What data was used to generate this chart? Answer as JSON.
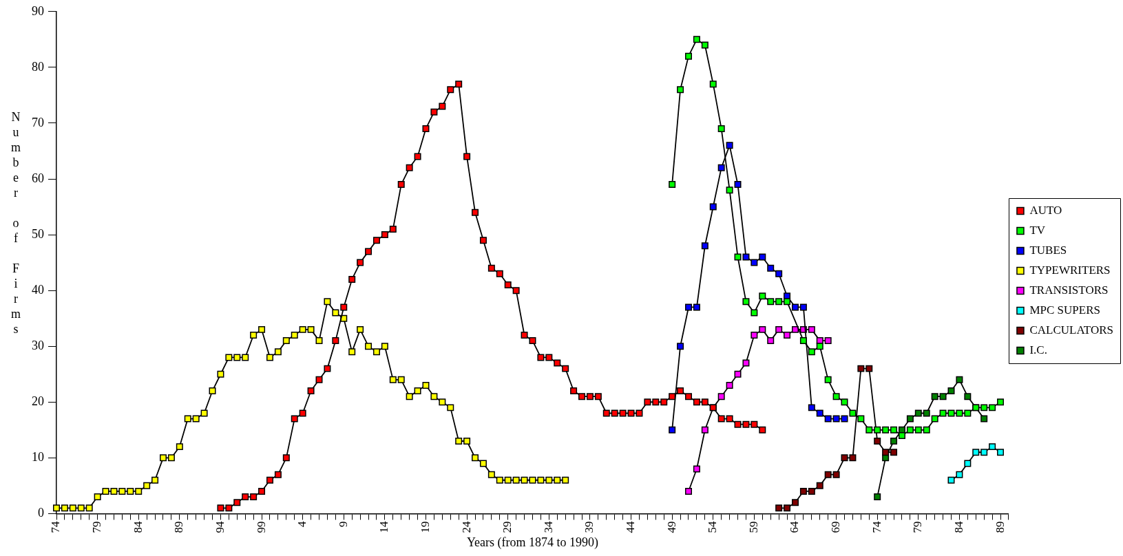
{
  "chart_data": {
    "type": "line",
    "xlabel": "Years (from 1874 to 1990)",
    "ylabel": "Number of Firms",
    "legend": "right",
    "marker": "square",
    "line_style": "solid",
    "ylim": [
      0,
      90
    ],
    "yticks": [
      0,
      10,
      20,
      30,
      40,
      50,
      60,
      70,
      80,
      90
    ],
    "categories": [
      "74",
      null,
      null,
      null,
      null,
      "79",
      null,
      null,
      null,
      null,
      "84",
      null,
      null,
      null,
      null,
      "89",
      null,
      null,
      null,
      null,
      "94",
      null,
      null,
      null,
      null,
      "99",
      null,
      null,
      null,
      null,
      "4",
      null,
      null,
      null,
      null,
      "9",
      null,
      null,
      null,
      null,
      "14",
      null,
      null,
      null,
      null,
      "19",
      null,
      null,
      null,
      null,
      "24",
      null,
      null,
      null,
      null,
      "29",
      null,
      null,
      null,
      null,
      "34",
      null,
      null,
      null,
      null,
      "39",
      null,
      null,
      null,
      null,
      "44",
      null,
      null,
      null,
      null,
      "49",
      null,
      null,
      null,
      null,
      "54",
      null,
      null,
      null,
      null,
      "59",
      null,
      null,
      null,
      null,
      "64",
      null,
      null,
      null,
      null,
      "69",
      null,
      null,
      null,
      null,
      "74",
      null,
      null,
      null,
      null,
      "79",
      null,
      null,
      null,
      null,
      "84",
      null,
      null,
      null,
      null,
      "89",
      null
    ],
    "series": [
      {
        "name": "AUTO",
        "color": "#ff0000",
        "values": [
          null,
          null,
          null,
          null,
          null,
          null,
          null,
          null,
          null,
          null,
          null,
          null,
          null,
          null,
          null,
          null,
          null,
          null,
          null,
          null,
          1,
          1,
          2,
          3,
          3,
          4,
          6,
          7,
          10,
          17,
          18,
          22,
          24,
          26,
          31,
          37,
          42,
          45,
          47,
          49,
          50,
          51,
          59,
          62,
          64,
          69,
          72,
          73,
          76,
          77,
          64,
          54,
          49,
          44,
          43,
          41,
          40,
          32,
          31,
          28,
          28,
          27,
          26,
          22,
          21,
          21,
          21,
          18,
          18,
          18,
          18,
          18,
          20,
          20,
          20,
          21,
          22,
          21,
          20,
          20,
          19,
          17,
          17,
          16,
          16,
          16,
          15,
          null,
          null,
          null,
          null,
          null,
          null,
          null,
          null,
          null,
          null,
          null,
          null,
          null,
          null,
          null,
          null,
          null,
          null,
          null,
          null,
          null,
          null,
          null,
          null,
          null,
          null,
          null,
          null,
          null,
          null
        ]
      },
      {
        "name": "TV",
        "color": "#00ff00",
        "values": [
          null,
          null,
          null,
          null,
          null,
          null,
          null,
          null,
          null,
          null,
          null,
          null,
          null,
          null,
          null,
          null,
          null,
          null,
          null,
          null,
          null,
          null,
          null,
          null,
          null,
          null,
          null,
          null,
          null,
          null,
          null,
          null,
          null,
          null,
          null,
          null,
          null,
          null,
          null,
          null,
          null,
          null,
          null,
          null,
          null,
          null,
          null,
          null,
          null,
          null,
          null,
          null,
          null,
          null,
          null,
          null,
          null,
          null,
          null,
          null,
          null,
          null,
          null,
          null,
          null,
          null,
          null,
          null,
          null,
          null,
          null,
          null,
          null,
          null,
          null,
          59,
          76,
          82,
          85,
          84,
          77,
          69,
          58,
          46,
          38,
          36,
          39,
          38,
          38,
          38,
          null,
          31,
          29,
          30,
          24,
          21,
          20,
          18,
          17,
          15,
          15,
          15,
          15,
          14,
          15,
          15,
          15,
          17,
          18,
          18,
          18,
          18,
          19,
          19,
          19,
          20,
          null
        ]
      },
      {
        "name": "TUBES",
        "color": "#0000ff",
        "values": [
          null,
          null,
          null,
          null,
          null,
          null,
          null,
          null,
          null,
          null,
          null,
          null,
          null,
          null,
          null,
          null,
          null,
          null,
          null,
          null,
          null,
          null,
          null,
          null,
          null,
          null,
          null,
          null,
          null,
          null,
          null,
          null,
          null,
          null,
          null,
          null,
          null,
          null,
          null,
          null,
          null,
          null,
          null,
          null,
          null,
          null,
          null,
          null,
          null,
          null,
          null,
          null,
          null,
          null,
          null,
          null,
          null,
          null,
          null,
          null,
          null,
          null,
          null,
          null,
          null,
          null,
          null,
          null,
          null,
          null,
          null,
          null,
          null,
          null,
          null,
          15,
          30,
          37,
          37,
          48,
          55,
          62,
          66,
          59,
          46,
          45,
          46,
          44,
          43,
          39,
          37,
          37,
          19,
          18,
          17,
          17,
          17,
          null,
          null,
          null,
          null,
          null,
          null,
          null,
          null,
          null,
          null,
          null,
          null,
          null,
          null,
          null,
          null,
          null,
          null,
          null,
          null
        ]
      },
      {
        "name": "TYPEWRITERS",
        "color": "#ffff00",
        "values": [
          1,
          1,
          1,
          1,
          1,
          3,
          4,
          4,
          4,
          4,
          4,
          5,
          6,
          10,
          10,
          12,
          17,
          17,
          18,
          22,
          25,
          28,
          28,
          28,
          32,
          33,
          28,
          29,
          31,
          32,
          33,
          33,
          31,
          38,
          36,
          35,
          29,
          33,
          30,
          29,
          30,
          24,
          24,
          21,
          22,
          23,
          21,
          20,
          19,
          13,
          13,
          10,
          9,
          7,
          6,
          6,
          6,
          6,
          6,
          6,
          6,
          6,
          6,
          null,
          null,
          null,
          null,
          null,
          null,
          null,
          null,
          null,
          null,
          null,
          null,
          null,
          null,
          null,
          null,
          null,
          null,
          null,
          null,
          null,
          null,
          null,
          null,
          null,
          null,
          null,
          null,
          null,
          null,
          null,
          null,
          null,
          null,
          null,
          null,
          null,
          null,
          null,
          null,
          null,
          null,
          null,
          null,
          null,
          null,
          null,
          null,
          null,
          null,
          null,
          null,
          null,
          null
        ]
      },
      {
        "name": "TRANSISTORS",
        "color": "#ff00ff",
        "values": [
          null,
          null,
          null,
          null,
          null,
          null,
          null,
          null,
          null,
          null,
          null,
          null,
          null,
          null,
          null,
          null,
          null,
          null,
          null,
          null,
          null,
          null,
          null,
          null,
          null,
          null,
          null,
          null,
          null,
          null,
          null,
          null,
          null,
          null,
          null,
          null,
          null,
          null,
          null,
          null,
          null,
          null,
          null,
          null,
          null,
          null,
          null,
          null,
          null,
          null,
          null,
          null,
          null,
          null,
          null,
          null,
          null,
          null,
          null,
          null,
          null,
          null,
          null,
          null,
          null,
          null,
          null,
          null,
          null,
          null,
          null,
          null,
          null,
          null,
          null,
          null,
          null,
          4,
          8,
          15,
          19,
          21,
          23,
          25,
          27,
          32,
          33,
          31,
          33,
          32,
          33,
          33,
          33,
          31,
          31,
          null,
          null,
          null,
          null,
          null,
          null,
          null,
          null,
          null,
          null,
          null,
          null,
          null,
          null,
          null,
          null,
          null,
          null,
          null,
          null,
          null,
          null
        ]
      },
      {
        "name": "MPC SUPERS",
        "color": "#00ffff",
        "values": [
          null,
          null,
          null,
          null,
          null,
          null,
          null,
          null,
          null,
          null,
          null,
          null,
          null,
          null,
          null,
          null,
          null,
          null,
          null,
          null,
          null,
          null,
          null,
          null,
          null,
          null,
          null,
          null,
          null,
          null,
          null,
          null,
          null,
          null,
          null,
          null,
          null,
          null,
          null,
          null,
          null,
          null,
          null,
          null,
          null,
          null,
          null,
          null,
          null,
          null,
          null,
          null,
          null,
          null,
          null,
          null,
          null,
          null,
          null,
          null,
          null,
          null,
          null,
          null,
          null,
          null,
          null,
          null,
          null,
          null,
          null,
          null,
          null,
          null,
          null,
          null,
          null,
          null,
          null,
          null,
          null,
          null,
          null,
          null,
          null,
          null,
          null,
          null,
          null,
          null,
          null,
          null,
          null,
          null,
          null,
          null,
          null,
          null,
          null,
          null,
          null,
          null,
          null,
          null,
          null,
          null,
          null,
          null,
          null,
          6,
          7,
          9,
          11,
          11,
          12,
          11,
          null
        ]
      },
      {
        "name": "CALCULATORS",
        "color": "#800000",
        "values": [
          null,
          null,
          null,
          null,
          null,
          null,
          null,
          null,
          null,
          null,
          null,
          null,
          null,
          null,
          null,
          null,
          null,
          null,
          null,
          null,
          null,
          null,
          null,
          null,
          null,
          null,
          null,
          null,
          null,
          null,
          null,
          null,
          null,
          null,
          null,
          null,
          null,
          null,
          null,
          null,
          null,
          null,
          null,
          null,
          null,
          null,
          null,
          null,
          null,
          null,
          null,
          null,
          null,
          null,
          null,
          null,
          null,
          null,
          null,
          null,
          null,
          null,
          null,
          null,
          null,
          null,
          null,
          null,
          null,
          null,
          null,
          null,
          null,
          null,
          null,
          null,
          null,
          null,
          null,
          null,
          null,
          null,
          null,
          null,
          null,
          null,
          null,
          null,
          1,
          1,
          2,
          4,
          4,
          5,
          7,
          7,
          10,
          10,
          26,
          26,
          13,
          11,
          11,
          null,
          null,
          null,
          null,
          null,
          null,
          null,
          null,
          null,
          null,
          null,
          null,
          null,
          null
        ]
      },
      {
        "name": "I.C.",
        "color": "#008000",
        "values": [
          null,
          null,
          null,
          null,
          null,
          null,
          null,
          null,
          null,
          null,
          null,
          null,
          null,
          null,
          null,
          null,
          null,
          null,
          null,
          null,
          null,
          null,
          null,
          null,
          null,
          null,
          null,
          null,
          null,
          null,
          null,
          null,
          null,
          null,
          null,
          null,
          null,
          null,
          null,
          null,
          null,
          null,
          null,
          null,
          null,
          null,
          null,
          null,
          null,
          null,
          null,
          null,
          null,
          null,
          null,
          null,
          null,
          null,
          null,
          null,
          null,
          null,
          null,
          null,
          null,
          null,
          null,
          null,
          null,
          null,
          null,
          null,
          null,
          null,
          null,
          null,
          null,
          null,
          null,
          null,
          null,
          null,
          null,
          null,
          null,
          null,
          null,
          null,
          null,
          null,
          null,
          null,
          null,
          null,
          null,
          null,
          null,
          null,
          null,
          null,
          3,
          10,
          13,
          15,
          17,
          18,
          18,
          21,
          21,
          22,
          24,
          21,
          19,
          17,
          null,
          null,
          null
        ]
      }
    ]
  }
}
